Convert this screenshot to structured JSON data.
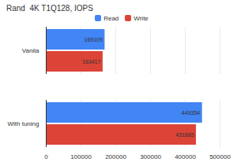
{
  "chart_data": {
    "type": "bar",
    "orientation": "horizontal",
    "title": "Rand  4K T1Q128, IOPS",
    "categories": [
      "Vanila",
      "With tuning"
    ],
    "series": [
      {
        "name": "Read",
        "color": "#4285f4",
        "values": [
          169109,
          449354
        ]
      },
      {
        "name": "Write",
        "color": "#db4437",
        "values": [
          163417,
          431885
        ]
      }
    ],
    "xlim": [
      0,
      500000
    ],
    "xticks": [
      0,
      100000,
      200000,
      300000,
      400000,
      500000
    ],
    "grid": true,
    "legend": "top",
    "data_labels": true
  }
}
